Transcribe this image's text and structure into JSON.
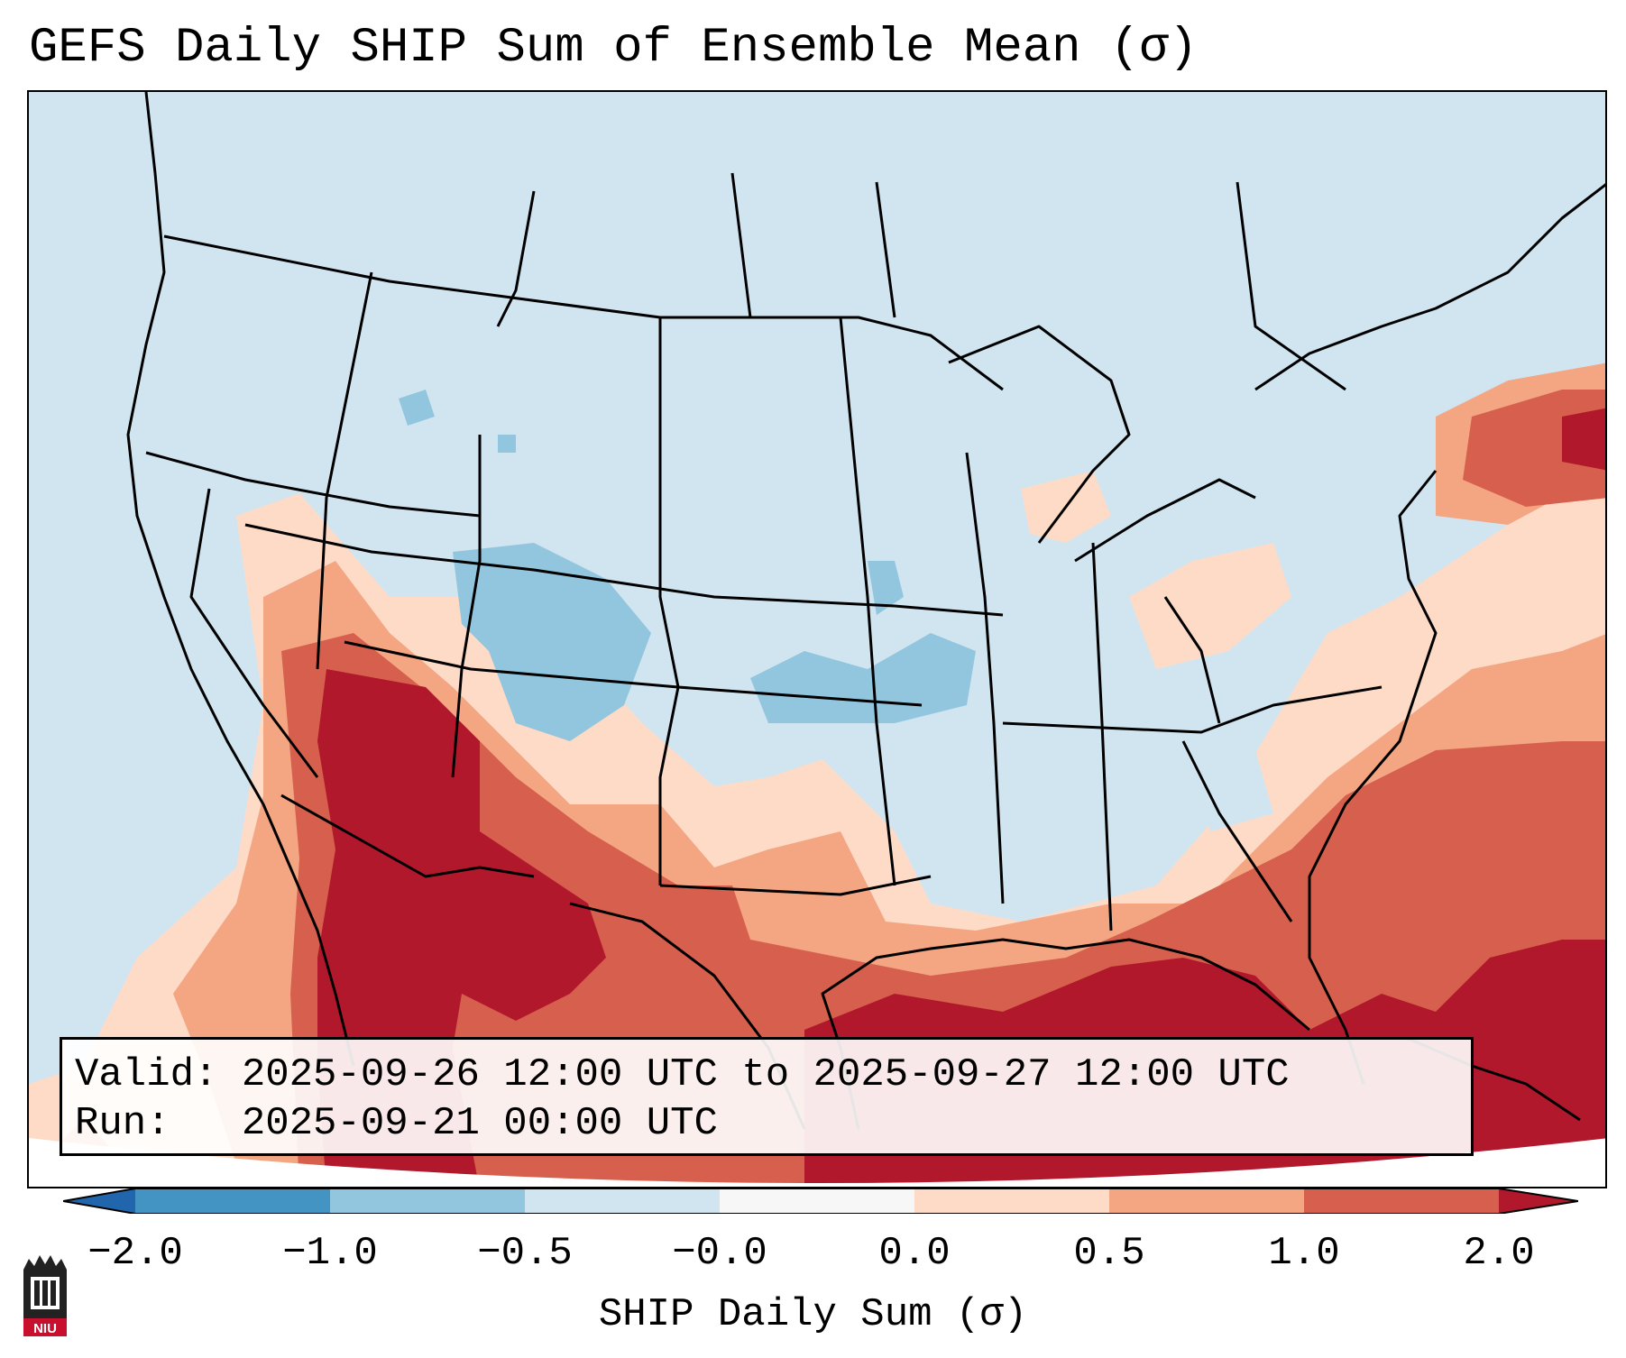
{
  "title": "GEFS Daily SHIP Sum of Ensemble Mean (σ)",
  "info": {
    "valid_label": "Valid:",
    "valid_value": "2025-09-26 12:00 UTC to 2025-09-27 12:00 UTC",
    "run_label": "Run:",
    "run_value": "2025-09-21 00:00 UTC"
  },
  "colorbar": {
    "label": "SHIP Daily Sum (σ)",
    "tick_labels": [
      "−2.0",
      "−1.0",
      "−0.5",
      "−0.0",
      "0.0",
      "0.5",
      "1.0",
      "2.0"
    ],
    "colors": {
      "extend_low": "#2166ac",
      "bin_-2_-1": "#4393c3",
      "bin_-1_-0.5": "#92c5de",
      "bin_-0.5_0": "#d1e5f0",
      "bin_0": "#f7f7f7",
      "bin_0_0.5": "#fddbc7",
      "bin_0.5_1": "#f4a582",
      "bin_1_2": "#d6604d",
      "extend_high": "#b2182b"
    }
  },
  "logo": {
    "text": "NIU",
    "color": "#c8102e"
  },
  "map": {
    "region": "Continental United States and surrounding areas",
    "dominant_pattern": "Positive SHIP anomalies (red) across the Desert Southwest, northern Mexico, the Gulf of Mexico and the western Atlantic; slightly negative (light blue) across the northern and central US"
  }
}
